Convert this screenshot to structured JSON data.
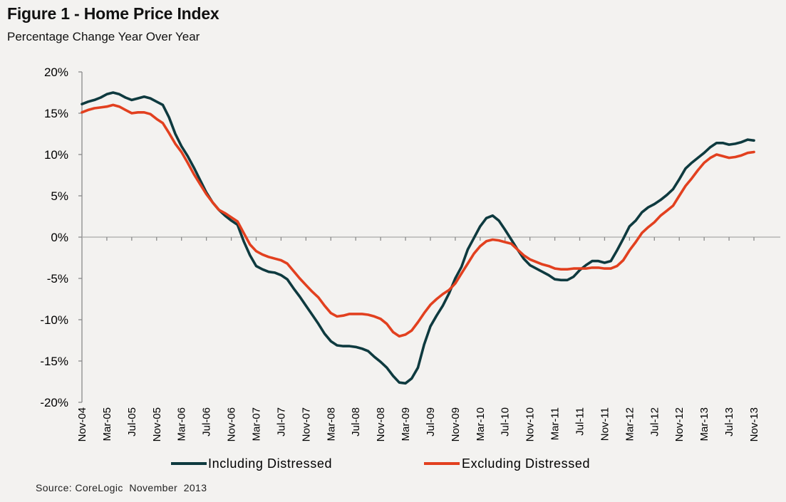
{
  "chart_data": {
    "type": "line",
    "title": "Figure 1 - Home Price Index",
    "subtitle": "Percentage Change Year Over Year",
    "xlabel": "",
    "ylabel": "",
    "ylim": [
      -20,
      20
    ],
    "y_ticks": [
      "20%",
      "15%",
      "10%",
      "5%",
      "0%",
      "-5%",
      "-10%",
      "-15%",
      "-20%"
    ],
    "y_tick_values": [
      20,
      15,
      10,
      5,
      0,
      -5,
      -10,
      -15,
      -20
    ],
    "x_tick_labels": [
      "Nov-04",
      "Mar-05",
      "Jul-05",
      "Nov-05",
      "Mar-06",
      "Jul-06",
      "Nov-06",
      "Mar-07",
      "Jul-07",
      "Nov-07",
      "Mar-08",
      "Jul-08",
      "Nov-08",
      "Mar-09",
      "Jul-09",
      "Nov-09",
      "Mar-10",
      "Jul-10",
      "Nov-10",
      "Mar-11",
      "Jul-11",
      "Nov-11",
      "Mar-12",
      "Jul-12",
      "Nov-12",
      "Mar-13",
      "Jul-13",
      "Nov-13"
    ],
    "x": [
      "Nov-04",
      "Dec-04",
      "Jan-05",
      "Feb-05",
      "Mar-05",
      "Apr-05",
      "May-05",
      "Jun-05",
      "Jul-05",
      "Aug-05",
      "Sep-05",
      "Oct-05",
      "Nov-05",
      "Dec-05",
      "Jan-06",
      "Feb-06",
      "Mar-06",
      "Apr-06",
      "May-06",
      "Jun-06",
      "Jul-06",
      "Aug-06",
      "Sep-06",
      "Oct-06",
      "Nov-06",
      "Dec-06",
      "Jan-07",
      "Feb-07",
      "Mar-07",
      "Apr-07",
      "May-07",
      "Jun-07",
      "Jul-07",
      "Aug-07",
      "Sep-07",
      "Oct-07",
      "Nov-07",
      "Dec-07",
      "Jan-08",
      "Feb-08",
      "Mar-08",
      "Apr-08",
      "May-08",
      "Jun-08",
      "Jul-08",
      "Aug-08",
      "Sep-08",
      "Oct-08",
      "Nov-08",
      "Dec-08",
      "Jan-09",
      "Feb-09",
      "Mar-09",
      "Apr-09",
      "May-09",
      "Jun-09",
      "Jul-09",
      "Aug-09",
      "Sep-09",
      "Oct-09",
      "Nov-09",
      "Dec-09",
      "Jan-10",
      "Feb-10",
      "Mar-10",
      "Apr-10",
      "May-10",
      "Jun-10",
      "Jul-10",
      "Aug-10",
      "Sep-10",
      "Oct-10",
      "Nov-10",
      "Dec-10",
      "Jan-11",
      "Feb-11",
      "Mar-11",
      "Apr-11",
      "May-11",
      "Jun-11",
      "Jul-11",
      "Aug-11",
      "Sep-11",
      "Oct-11",
      "Nov-11",
      "Dec-11",
      "Jan-12",
      "Feb-12",
      "Mar-12",
      "Apr-12",
      "May-12",
      "Jun-12",
      "Jul-12",
      "Aug-12",
      "Sep-12",
      "Oct-12",
      "Nov-12",
      "Dec-12",
      "Jan-13",
      "Feb-13",
      "Mar-13",
      "Apr-13",
      "May-13",
      "Jun-13",
      "Jul-13",
      "Aug-13",
      "Sep-13",
      "Oct-13",
      "Nov-13"
    ],
    "series": [
      {
        "name": "Including Distressed",
        "color": "#0e3a3f",
        "values": [
          16.1,
          16.4,
          16.6,
          16.9,
          17.3,
          17.5,
          17.3,
          16.9,
          16.6,
          16.8,
          17.0,
          16.8,
          16.4,
          16.0,
          14.5,
          12.5,
          11.0,
          9.8,
          8.4,
          6.9,
          5.4,
          4.2,
          3.3,
          2.6,
          2.0,
          1.5,
          -0.5,
          -2.2,
          -3.5,
          -3.9,
          -4.2,
          -4.3,
          -4.6,
          -5.1,
          -6.2,
          -7.2,
          -8.3,
          -9.4,
          -10.5,
          -11.7,
          -12.6,
          -13.1,
          -13.2,
          -13.2,
          -13.3,
          -13.5,
          -13.8,
          -14.5,
          -15.1,
          -15.8,
          -16.8,
          -17.6,
          -17.7,
          -17.1,
          -15.8,
          -13.0,
          -10.8,
          -9.5,
          -8.3,
          -6.8,
          -5.0,
          -3.6,
          -1.5,
          -0.1,
          1.3,
          2.3,
          2.6,
          2.0,
          0.9,
          -0.3,
          -1.5,
          -2.6,
          -3.4,
          -3.8,
          -4.2,
          -4.6,
          -5.1,
          -5.2,
          -5.2,
          -4.8,
          -4.0,
          -3.4,
          -2.9,
          -2.9,
          -3.1,
          -2.9,
          -1.6,
          -0.2,
          1.3,
          2.0,
          3.0,
          3.6,
          4.0,
          4.5,
          5.1,
          5.8,
          7.0,
          8.3,
          9.0,
          9.6,
          10.2,
          10.9,
          11.4,
          11.4,
          11.2,
          11.3,
          11.5,
          11.8,
          11.7
        ]
      },
      {
        "name": "Excluding Distressed",
        "color": "#e2401f",
        "values": [
          15.1,
          15.4,
          15.6,
          15.7,
          15.8,
          16.0,
          15.8,
          15.4,
          15.0,
          15.1,
          15.1,
          14.9,
          14.3,
          13.8,
          12.6,
          11.3,
          10.3,
          9.0,
          7.6,
          6.4,
          5.2,
          4.2,
          3.3,
          2.9,
          2.4,
          1.9,
          0.5,
          -0.9,
          -1.7,
          -2.1,
          -2.4,
          -2.6,
          -2.8,
          -3.2,
          -4.1,
          -5.0,
          -5.8,
          -6.6,
          -7.3,
          -8.3,
          -9.2,
          -9.6,
          -9.5,
          -9.3,
          -9.3,
          -9.3,
          -9.4,
          -9.6,
          -9.9,
          -10.5,
          -11.5,
          -12.0,
          -11.8,
          -11.3,
          -10.3,
          -9.2,
          -8.2,
          -7.5,
          -6.9,
          -6.4,
          -5.6,
          -4.4,
          -3.2,
          -2.0,
          -1.1,
          -0.5,
          -0.3,
          -0.4,
          -0.6,
          -0.8,
          -1.5,
          -2.2,
          -2.7,
          -3.0,
          -3.3,
          -3.5,
          -3.8,
          -3.9,
          -3.9,
          -3.8,
          -3.8,
          -3.8,
          -3.7,
          -3.7,
          -3.8,
          -3.8,
          -3.5,
          -2.8,
          -1.6,
          -0.6,
          0.5,
          1.2,
          1.8,
          2.6,
          3.2,
          3.8,
          5.0,
          6.2,
          7.1,
          8.1,
          9.0,
          9.6,
          10.0,
          9.8,
          9.6,
          9.7,
          9.9,
          10.2,
          10.3
        ]
      }
    ],
    "legend": "bottom",
    "grid": false,
    "source": "Source: CoreLogic  November  2013"
  }
}
